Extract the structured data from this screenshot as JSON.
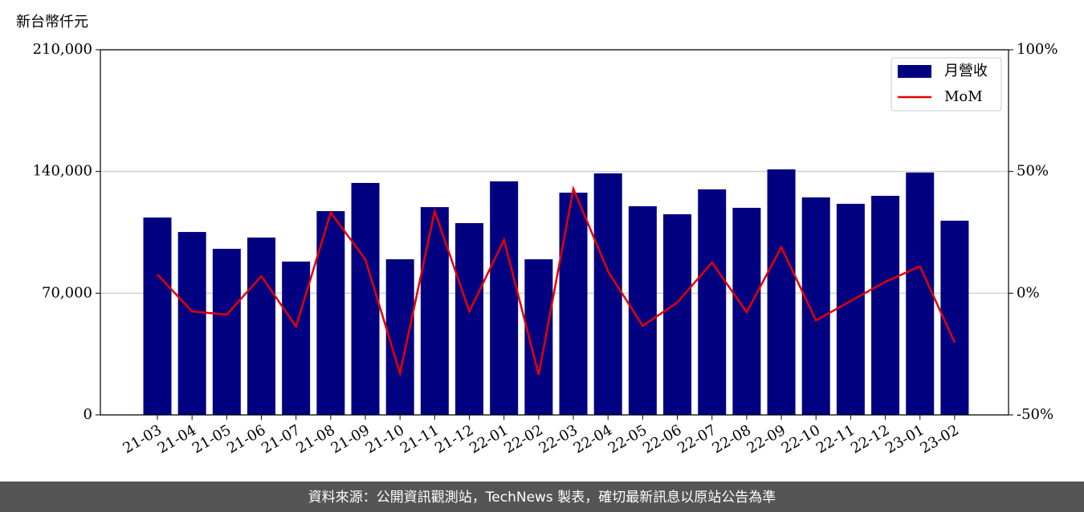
{
  "chart_data": {
    "type": "bar-line",
    "unit_label": "新台幣仟元",
    "categories": [
      "21-03",
      "21-04",
      "21-05",
      "21-06",
      "21-07",
      "21-08",
      "21-09",
      "21-10",
      "21-11",
      "21-12",
      "22-01",
      "22-02",
      "22-03",
      "22-04",
      "22-05",
      "22-06",
      "22-07",
      "22-08",
      "22-09",
      "22-10",
      "22-11",
      "22-12",
      "23-01",
      "23-02"
    ],
    "series": [
      {
        "name": "月營收",
        "type": "bar",
        "color": "#000080",
        "values": [
          113500,
          105200,
          95500,
          102000,
          88200,
          117200,
          133400,
          89500,
          119500,
          110300,
          134300,
          89500,
          127800,
          138900,
          120000,
          115400,
          129700,
          119100,
          141200,
          125100,
          121400,
          126000,
          139400,
          111700
        ]
      },
      {
        "name": "MoM",
        "type": "line",
        "axis": "y2",
        "color": "#e60000",
        "values": [
          7.7,
          -7.5,
          -8.8,
          7.0,
          -13.7,
          33.1,
          13.9,
          -32.9,
          33.7,
          -7.5,
          21.9,
          -33.5,
          42.9,
          9.0,
          -13.4,
          -3.8,
          12.6,
          -7.8,
          18.9,
          -11.2,
          -3.2,
          4.7,
          11.0,
          -20.3
        ]
      }
    ],
    "ylim": [
      0,
      210000
    ],
    "yticks": [
      0,
      {
        "value": 70000,
        "label": "70,000"
      },
      {
        "value": 140000,
        "label": "140,000"
      },
      {
        "value": 210000,
        "label": "210,000"
      }
    ],
    "y2lim": [
      -50,
      100
    ],
    "y2ticks": [
      {
        "value": -50,
        "label": "-50%"
      },
      {
        "value": 0,
        "label": "0%"
      },
      {
        "value": 50,
        "label": "50%"
      },
      {
        "value": 100,
        "label": "100%"
      }
    ],
    "grid": true,
    "legend": "upper right",
    "footer": "資料來源：公開資訊觀測站，TechNews 製表，確切最新訊息以原站公告為準"
  }
}
